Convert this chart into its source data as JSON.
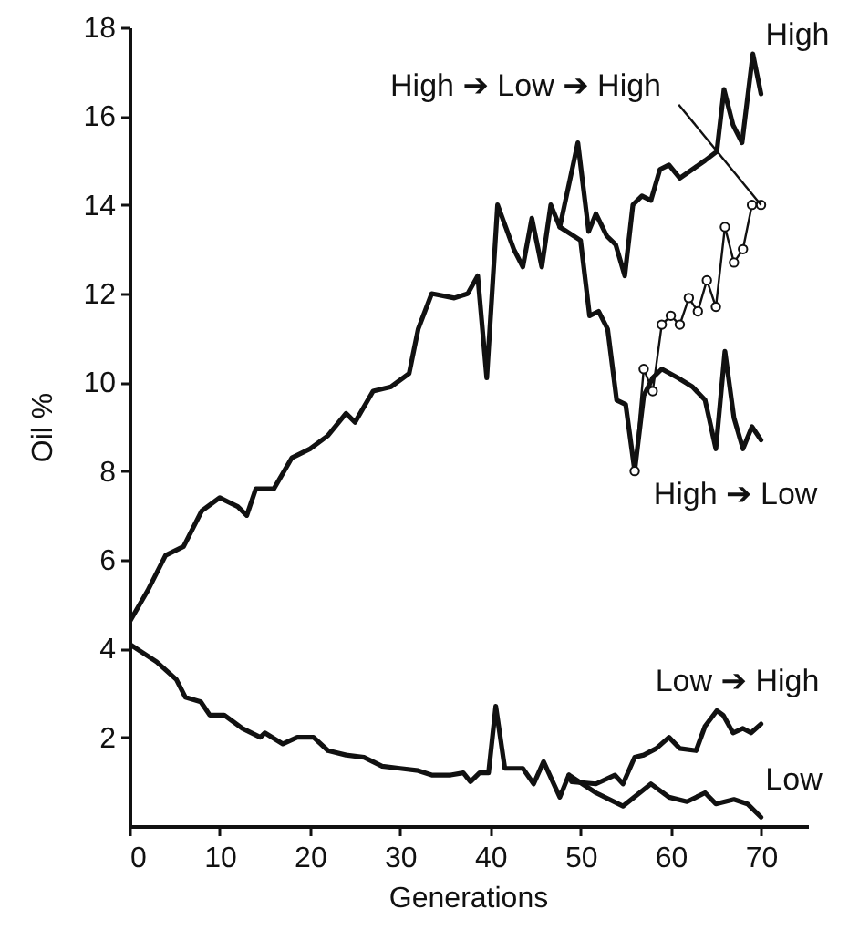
{
  "chart_data": {
    "type": "line",
    "xlabel": "Generations",
    "ylabel": "Oil %",
    "xlim": [
      0,
      75
    ],
    "xticks": [
      0,
      10,
      20,
      30,
      40,
      50,
      60,
      70
    ],
    "ylim": [
      0,
      18
    ],
    "yticks": [
      2,
      4,
      6,
      8,
      10,
      12,
      14,
      16,
      18
    ],
    "grid": false,
    "legend": false,
    "series": [
      {
        "name": "High",
        "color": "#111111",
        "x": [
          0,
          2,
          4,
          6,
          8,
          10,
          12,
          13,
          14,
          16,
          18,
          20,
          22,
          24,
          25,
          27,
          29,
          31,
          32,
          33.5,
          36,
          37.5,
          38.6,
          39.6,
          40.8,
          42.6,
          43.6,
          44.6,
          45.7,
          46.7,
          47.7,
          49.7,
          50.9,
          51.7,
          52.9,
          53.9,
          54.9,
          55.8,
          56.8,
          57.8,
          58.8,
          59.8,
          61,
          63.8,
          65.1,
          65.9,
          66.9,
          67.9,
          69.1,
          70
        ],
        "values": [
          4.6,
          5.3,
          6.1,
          6.3,
          7.1,
          7.4,
          7.2,
          7.0,
          7.6,
          7.6,
          8.3,
          8.5,
          8.8,
          9.3,
          9.1,
          9.8,
          9.9,
          10.2,
          11.2,
          12.0,
          11.9,
          12.0,
          12.4,
          10.1,
          14.0,
          13.0,
          12.6,
          13.7,
          12.6,
          14.0,
          13.5,
          15.4,
          13.4,
          13.8,
          13.3,
          13.1,
          12.4,
          14.0,
          14.2,
          14.1,
          14.8,
          14.9,
          14.6,
          15.0,
          15.2,
          16.6,
          15.8,
          15.4,
          17.4,
          16.5
        ]
      },
      {
        "name": "High ➔ Low",
        "color": "#111111",
        "x": [
          47.7,
          50,
          51,
          52,
          53,
          54,
          55,
          56,
          57,
          58,
          59,
          60.8,
          62.4,
          63.8,
          65,
          66,
          67,
          68,
          69,
          70
        ],
        "values": [
          13.5,
          13.2,
          11.5,
          11.6,
          11.2,
          9.6,
          9.5,
          8.0,
          9.7,
          10.1,
          10.3,
          10.1,
          9.9,
          9.6,
          8.5,
          10.7,
          9.2,
          8.5,
          9.0,
          8.7
        ]
      },
      {
        "name": "High ➔ Low ➔ High",
        "color": "#111111",
        "marker": "circle",
        "x": [
          56,
          57,
          58,
          59,
          60,
          61,
          62,
          63,
          64,
          65,
          66,
          67,
          68,
          69,
          70
        ],
        "values": [
          8.0,
          10.3,
          9.8,
          11.3,
          11.5,
          11.3,
          11.9,
          11.6,
          12.3,
          11.7,
          13.5,
          12.7,
          13.0,
          14.0,
          14.0
        ]
      },
      {
        "name": "Low ➔ High",
        "color": "#111111",
        "x": [
          48.7,
          49,
          51.7,
          53.8,
          54.7,
          56,
          57,
          58.4,
          59.8,
          61,
          62.8,
          63.8,
          65.1,
          65.8,
          66.9,
          68,
          68.9,
          70
        ],
        "values": [
          1.15,
          1.0,
          0.95,
          1.15,
          0.95,
          1.55,
          1.6,
          1.75,
          2.0,
          1.75,
          1.7,
          2.25,
          2.6,
          2.5,
          2.1,
          2.2,
          2.1,
          2.3
        ]
      },
      {
        "name": "Low",
        "color": "#111111",
        "x": [
          0,
          3,
          5.2,
          6.2,
          7.9,
          8.9,
          10.5,
          12.5,
          14.5,
          15,
          17,
          18.6,
          20.4,
          22,
          24,
          26,
          28,
          30,
          32,
          33.5,
          35.6,
          37,
          37.8,
          38.8,
          39.8,
          40.6,
          41.6,
          43.6,
          44.8,
          45.9,
          47.7,
          48.7,
          51.7,
          54.7,
          57.8,
          59.8,
          61.8,
          63.8,
          65,
          67,
          68.5,
          70
        ],
        "values": [
          4.1,
          3.7,
          3.3,
          2.9,
          2.8,
          2.5,
          2.5,
          2.2,
          2.0,
          2.1,
          1.85,
          2.0,
          2.0,
          1.7,
          1.6,
          1.55,
          1.35,
          1.3,
          1.25,
          1.15,
          1.15,
          1.2,
          1.0,
          1.2,
          1.2,
          2.7,
          1.3,
          1.3,
          0.95,
          1.45,
          0.65,
          1.15,
          0.75,
          0.45,
          0.95,
          0.65,
          0.55,
          0.75,
          0.5,
          0.6,
          0.5,
          0.2
        ]
      }
    ]
  }
}
